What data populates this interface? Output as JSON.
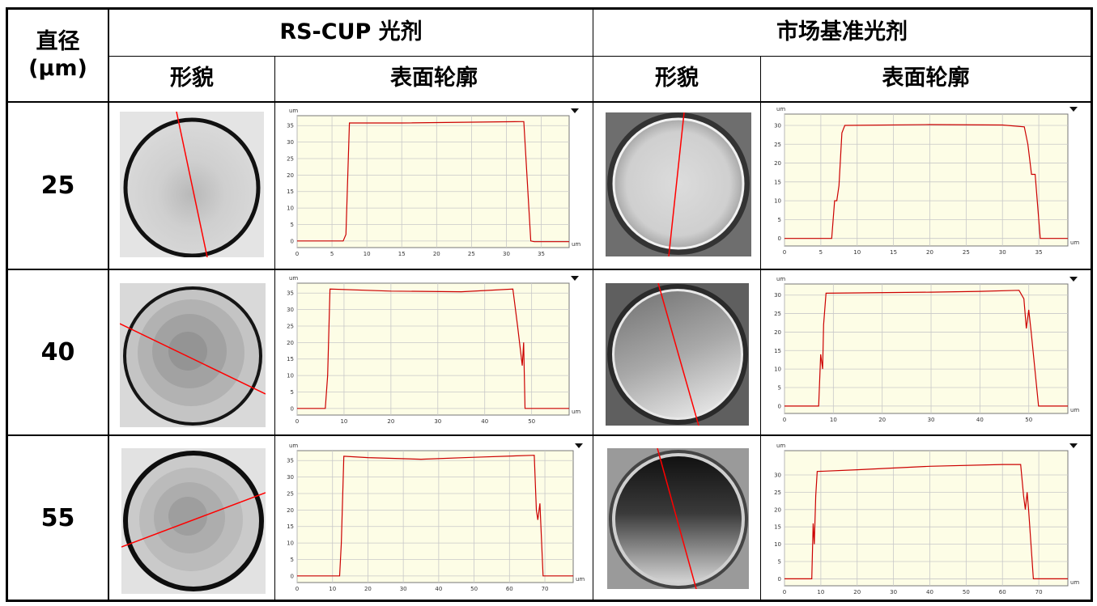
{
  "header": {
    "diameter_label": "直径\n(μm)",
    "group_rs": "RS-CUP 光剂",
    "group_market": "市场基准光剂",
    "col_morph": "形貌",
    "col_profile": "表面轮廓"
  },
  "rows": [
    {
      "diameter": "25"
    },
    {
      "diameter": "40"
    },
    {
      "diameter": "55"
    }
  ],
  "colors": {
    "profile_line": "#cc0000",
    "plot_bg": "#fdfde6",
    "grid": "#c8c8c8",
    "cut_line": "#ff0000"
  },
  "chart_data": [
    {
      "type": "line",
      "row": "25",
      "group": "RS-CUP 光剂",
      "xlabel": "um",
      "ylabel": "um",
      "xlim": [
        0,
        39
      ],
      "ylim": [
        -2,
        38
      ],
      "xticks": [
        0,
        5,
        10,
        15,
        20,
        25,
        30,
        35
      ],
      "yticks": [
        0,
        5,
        10,
        15,
        20,
        25,
        30,
        35
      ],
      "x": [
        0,
        6.6,
        7,
        7.5,
        15,
        32,
        32.5,
        33.5,
        34,
        39
      ],
      "y": [
        0,
        0,
        2,
        35.8,
        35.8,
        36.2,
        36.2,
        0,
        -0.2,
        -0.2
      ]
    },
    {
      "type": "line",
      "row": "25",
      "group": "市场基准光剂",
      "xlabel": "um",
      "ylabel": "um",
      "xlim": [
        0,
        39
      ],
      "ylim": [
        -2,
        33
      ],
      "xticks": [
        0,
        5,
        10,
        15,
        20,
        25,
        30,
        35
      ],
      "yticks": [
        0,
        5,
        10,
        15,
        20,
        25,
        30
      ],
      "x": [
        0,
        6.5,
        6.9,
        7.2,
        7.5,
        7.9,
        8.3,
        20,
        30,
        33,
        33.5,
        34,
        34.5,
        35.2,
        39
      ],
      "y": [
        0,
        0,
        10,
        10,
        14,
        28,
        30,
        30.2,
        30.1,
        29.6,
        25,
        17,
        17,
        0,
        0
      ]
    },
    {
      "type": "line",
      "row": "40",
      "group": "RS-CUP 光剂",
      "xlabel": "um",
      "ylabel": "um",
      "xlim": [
        0,
        58
      ],
      "ylim": [
        -2,
        38
      ],
      "xticks": [
        0,
        10,
        20,
        30,
        40,
        50
      ],
      "yticks": [
        0,
        5,
        10,
        15,
        20,
        25,
        30,
        35
      ],
      "x": [
        0,
        6,
        6.5,
        7,
        20,
        35,
        46,
        47,
        48,
        48.3,
        48.6,
        49,
        58
      ],
      "y": [
        0,
        0,
        10,
        36.2,
        35.6,
        35.4,
        36.2,
        25,
        13,
        20,
        0,
        0,
        0
      ]
    },
    {
      "type": "line",
      "row": "40",
      "group": "市场基准光剂",
      "xlabel": "um",
      "ylabel": "um",
      "xlim": [
        0,
        58
      ],
      "ylim": [
        -2,
        33
      ],
      "xticks": [
        0,
        10,
        20,
        30,
        40,
        50
      ],
      "yticks": [
        0,
        5,
        10,
        15,
        20,
        25,
        30
      ],
      "x": [
        0,
        7,
        7.4,
        7.8,
        8,
        8.5,
        15,
        30,
        40,
        48,
        49,
        49.5,
        50,
        50.5,
        52,
        58
      ],
      "y": [
        0,
        0,
        14,
        10,
        22,
        30.5,
        30.6,
        30.8,
        31,
        31.3,
        29,
        21,
        26,
        20,
        0,
        0
      ]
    },
    {
      "type": "line",
      "row": "55",
      "group": "RS-CUP 光剂",
      "xlabel": "um",
      "ylabel": "um",
      "xlim": [
        0,
        78
      ],
      "ylim": [
        -2,
        38
      ],
      "xticks": [
        0,
        10,
        20,
        30,
        40,
        50,
        60,
        70
      ],
      "yticks": [
        0,
        5,
        10,
        15,
        20,
        25,
        30,
        35
      ],
      "x": [
        0,
        12,
        12.5,
        13.2,
        20,
        35,
        50,
        67,
        67.6,
        68,
        68.6,
        69.5,
        70,
        78
      ],
      "y": [
        0,
        0,
        10,
        36.3,
        35.9,
        35.4,
        36,
        36.6,
        20,
        17,
        22,
        0,
        0,
        0
      ]
    },
    {
      "type": "line",
      "row": "55",
      "group": "市场基准光剂",
      "xlabel": "um",
      "ylabel": "um",
      "xlim": [
        0,
        78
      ],
      "ylim": [
        -2,
        37
      ],
      "xticks": [
        0,
        10,
        20,
        30,
        40,
        50,
        60,
        70
      ],
      "yticks": [
        0,
        5,
        10,
        15,
        20,
        25,
        30
      ],
      "x": [
        0,
        7.5,
        7.9,
        8.2,
        8.6,
        9,
        20,
        40,
        60,
        65,
        65.8,
        66.3,
        66.8,
        67.2,
        68.5,
        78
      ],
      "y": [
        0,
        0,
        16,
        10,
        24,
        31,
        31.5,
        32.5,
        33,
        33,
        24,
        20,
        25,
        20,
        0,
        0
      ]
    }
  ]
}
